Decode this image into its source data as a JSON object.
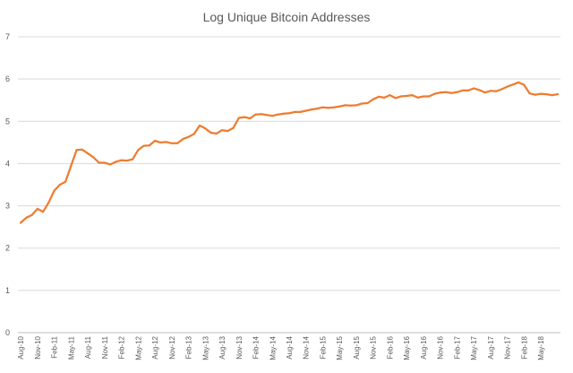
{
  "chart_data": {
    "type": "line",
    "title": "Log Unique Bitcoin Addresses",
    "xlabel": "",
    "ylabel": "",
    "ylim": [
      0,
      7
    ],
    "yticks": [
      0,
      1,
      2,
      3,
      4,
      5,
      6,
      7
    ],
    "grid": "horizontal",
    "legend": "none",
    "xtick_labels": [
      "Aug-10",
      "Nov-10",
      "Feb-11",
      "May-11",
      "Aug-11",
      "Nov-11",
      "Feb-12",
      "May-12",
      "Aug-12",
      "Nov-12",
      "Feb-13",
      "May-13",
      "Aug-13",
      "Nov-13",
      "Feb-14",
      "May-14",
      "Aug-14",
      "Nov-14",
      "Feb-15",
      "May-15",
      "Aug-15",
      "Nov-15",
      "Feb-16",
      "May-16",
      "Aug-16",
      "Nov-16",
      "Feb-17",
      "May-17",
      "Aug-17",
      "Nov-17",
      "Feb-18",
      "May-18"
    ],
    "series": [
      {
        "color": "#ed7d31",
        "values": [
          2.6,
          2.72,
          2.78,
          2.93,
          2.86,
          3.08,
          3.36,
          3.5,
          3.57,
          3.95,
          4.32,
          4.33,
          4.24,
          4.15,
          4.02,
          4.02,
          3.98,
          4.04,
          4.08,
          4.07,
          4.1,
          4.32,
          4.42,
          4.43,
          4.54,
          4.5,
          4.51,
          4.48,
          4.48,
          4.58,
          4.63,
          4.7,
          4.9,
          4.83,
          4.73,
          4.71,
          4.79,
          4.77,
          4.84,
          5.08,
          5.1,
          5.07,
          5.16,
          5.17,
          5.15,
          5.13,
          5.16,
          5.18,
          5.19,
          5.22,
          5.22,
          5.25,
          5.28,
          5.3,
          5.33,
          5.32,
          5.33,
          5.35,
          5.38,
          5.37,
          5.38,
          5.42,
          5.43,
          5.52,
          5.58,
          5.56,
          5.62,
          5.55,
          5.59,
          5.6,
          5.62,
          5.56,
          5.59,
          5.59,
          5.65,
          5.68,
          5.69,
          5.67,
          5.69,
          5.73,
          5.73,
          5.78,
          5.74,
          5.68,
          5.72,
          5.71,
          5.76,
          5.82,
          5.87,
          5.92,
          5.86,
          5.66,
          5.63,
          5.65,
          5.64,
          5.62,
          5.64
        ]
      }
    ]
  }
}
